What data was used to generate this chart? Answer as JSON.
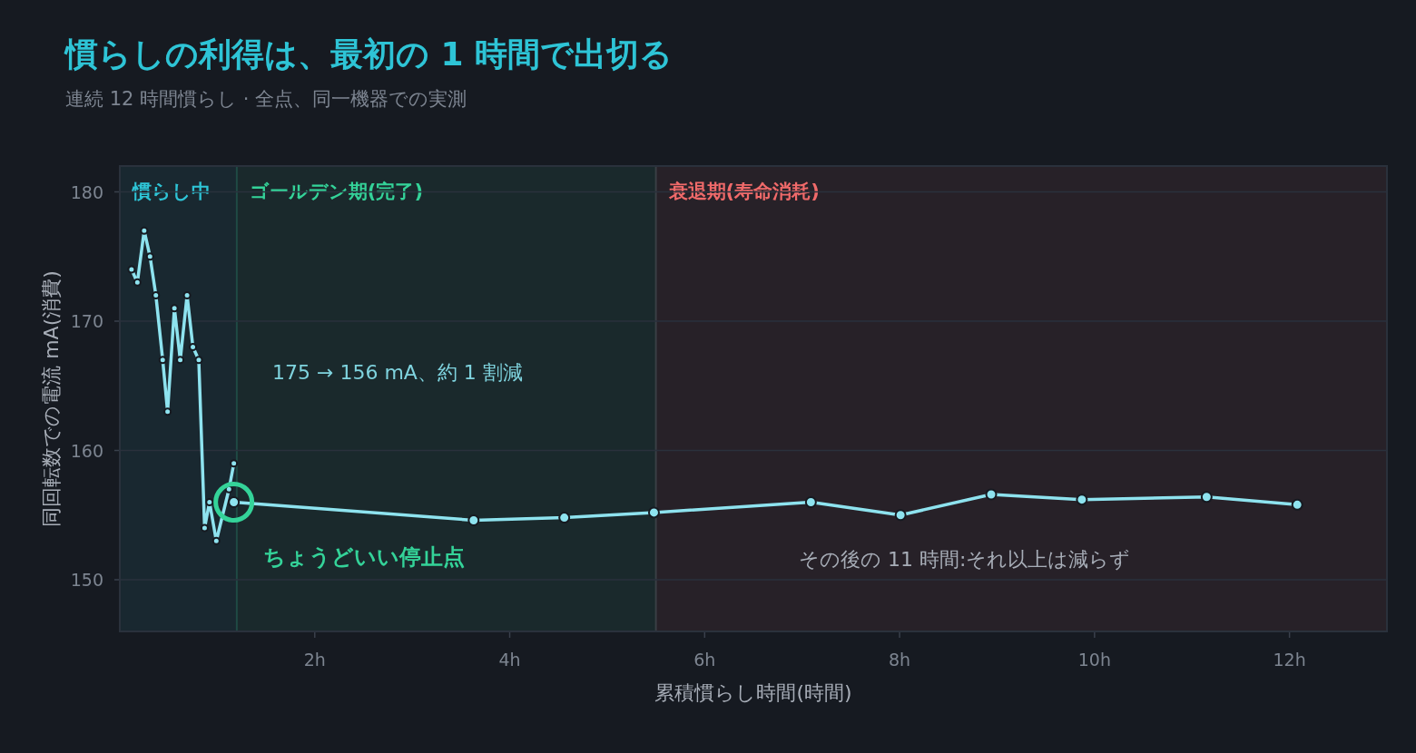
{
  "chart_data": {
    "type": "line",
    "title": "慣らしの利得は、最初の 1 時間で出切る",
    "subtitle": "連続 12 時間慣らし · 全点、同一機器での実測",
    "xlabel": "累積慣らし時間(時間)",
    "ylabel": "同回転数での電流 mA(消費)",
    "series": [
      {
        "color": "#8ee3ef",
        "x": [
          0.12,
          0.18,
          0.25,
          0.31,
          0.37,
          0.44,
          0.49,
          0.56,
          0.62,
          0.69,
          0.75,
          0.81,
          0.87,
          0.92,
          0.99,
          1.12,
          1.17
        ],
        "values": [
          174,
          173,
          177,
          175,
          172,
          167,
          163,
          171,
          167,
          172,
          168,
          167,
          154,
          156,
          153,
          157,
          159
        ]
      },
      {
        "color": "#8ee3ef",
        "x": [
          1.17,
          3.63,
          4.56,
          5.48,
          7.09,
          8.01,
          8.94,
          9.87,
          11.15,
          12.08
        ],
        "values": [
          156.0,
          154.6,
          154.8,
          155.2,
          156.0,
          155.0,
          156.6,
          156.2,
          156.4,
          155.8
        ]
      }
    ],
    "xlim": [
      0,
      13
    ],
    "xticks": [
      {
        "value": 2,
        "label": "2h"
      },
      {
        "value": 4,
        "label": "4h"
      },
      {
        "value": 6,
        "label": "6h"
      },
      {
        "value": 8,
        "label": "8h"
      },
      {
        "value": 10,
        "label": "10h"
      },
      {
        "value": 12,
        "label": "12h"
      }
    ],
    "ylim": [
      146,
      182
    ],
    "yticks": [
      150,
      160,
      170,
      180
    ],
    "bands": [
      {
        "axis": "x",
        "from": 0,
        "to": 1.2,
        "label": "慣らし中",
        "color": "#2ec4d6"
      },
      {
        "axis": "x",
        "from": 1.2,
        "to": 5.5,
        "label": "ゴールデン期(完了)",
        "color": "#34d399"
      },
      {
        "axis": "x",
        "from": 5.5,
        "to": 13,
        "label": "衰退期(寿命消耗)",
        "color": "#f06a6a"
      }
    ],
    "ref_lines": [
      {
        "axis": "x",
        "value": 1.2,
        "color": "#1f4a44"
      },
      {
        "axis": "x",
        "value": 5.5,
        "color": "#3a3f45"
      }
    ],
    "annotations": [
      "175 → 156 mA、約 1 割減",
      {
        "text": "ちょうどいい停止点",
        "x": 1.17,
        "y": 156.0
      },
      "その後の 11 時間:それ以上は減らず"
    ],
    "grid": "y",
    "marker": "circle",
    "line_style": "solid"
  }
}
